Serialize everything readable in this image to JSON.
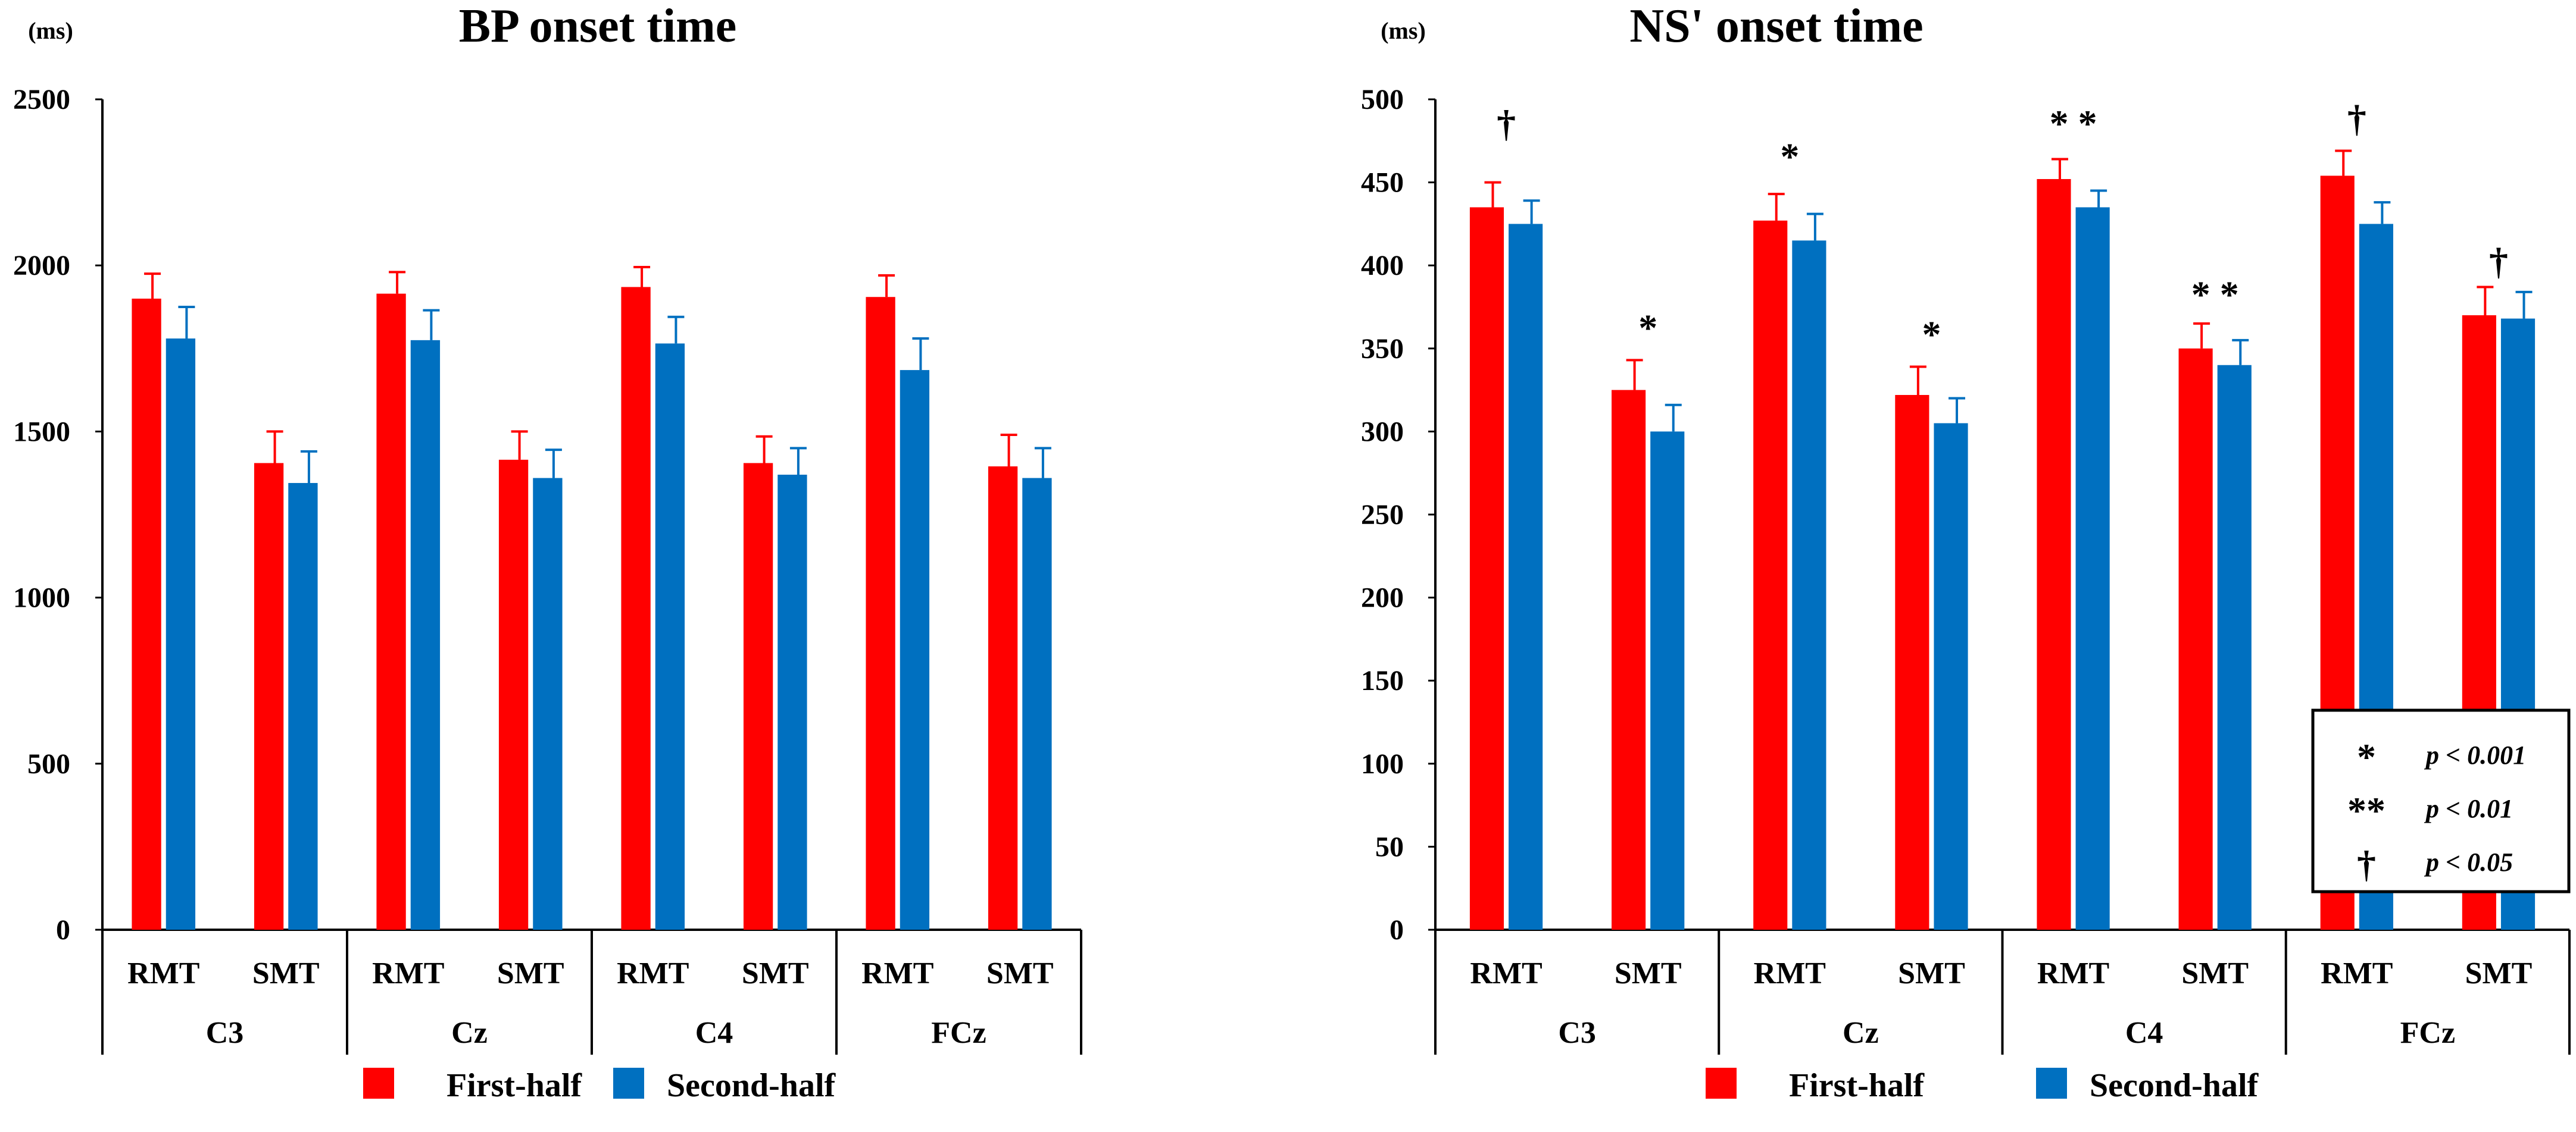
{
  "colors": {
    "first_half": "#ff0000",
    "second_half": "#0070c0"
  },
  "legend": {
    "first_half": "First-half",
    "second_half": "Second-half"
  },
  "chart_data": [
    {
      "type": "bar",
      "title": "BP onset time",
      "ylabel": "(ms)",
      "ylim": [
        0,
        2500
      ],
      "yticks": [
        "0",
        "500",
        "1000",
        "1500",
        "2000",
        "2500"
      ],
      "ytick_values": [
        0,
        500,
        1000,
        1500,
        2000,
        2500
      ],
      "groups": [
        "C3",
        "Cz",
        "C4",
        "FCz"
      ],
      "categories": [
        "RMT",
        "SMT",
        "RMT",
        "SMT",
        "RMT",
        "SMT",
        "RMT",
        "SMT"
      ],
      "series": [
        {
          "name": "First-half",
          "values": [
            1900,
            1405,
            1915,
            1415,
            1935,
            1405,
            1905,
            1395
          ],
          "errors": [
            75,
            95,
            65,
            85,
            60,
            80,
            65,
            95
          ]
        },
        {
          "name": "Second-half",
          "values": [
            1780,
            1345,
            1775,
            1360,
            1765,
            1370,
            1685,
            1360
          ],
          "errors": [
            95,
            95,
            90,
            85,
            80,
            80,
            95,
            90
          ]
        }
      ],
      "annotations": []
    },
    {
      "type": "bar",
      "title": "NS' onset time",
      "ylabel": "(ms)",
      "ylim": [
        0,
        500
      ],
      "yticks": [
        "0",
        "50",
        "100",
        "150",
        "200",
        "250",
        "300",
        "350",
        "400",
        "450",
        "500"
      ],
      "ytick_values": [
        0,
        50,
        100,
        150,
        200,
        250,
        300,
        350,
        400,
        450,
        500
      ],
      "groups": [
        "C3",
        "Cz",
        "C4",
        "FCz"
      ],
      "categories": [
        "RMT",
        "SMT",
        "RMT",
        "SMT",
        "RMT",
        "SMT",
        "RMT",
        "SMT"
      ],
      "series": [
        {
          "name": "First-half",
          "values": [
            435,
            325,
            427,
            322,
            452,
            350,
            454,
            370
          ],
          "errors": [
            15,
            18,
            16,
            17,
            12,
            15,
            15,
            17
          ]
        },
        {
          "name": "Second-half",
          "values": [
            425,
            300,
            415,
            305,
            435,
            340,
            425,
            368
          ],
          "errors": [
            14,
            16,
            16,
            15,
            10,
            15,
            13,
            16
          ]
        }
      ],
      "annotations": [
        {
          "index": 0,
          "symbol": "†",
          "value": 485
        },
        {
          "index": 1,
          "symbol": "*",
          "value": 362
        },
        {
          "index": 2,
          "symbol": "*",
          "value": 465
        },
        {
          "index": 3,
          "symbol": "*",
          "value": 358
        },
        {
          "index": 4,
          "symbol": "* *",
          "value": 485
        },
        {
          "index": 5,
          "symbol": "* *",
          "value": 382
        },
        {
          "index": 6,
          "symbol": "†",
          "value": 488
        },
        {
          "index": 7,
          "symbol": "†",
          "value": 402
        }
      ],
      "key": [
        {
          "symbol": "*",
          "text": "p < 0.001"
        },
        {
          "symbol": "**",
          "text": "p < 0.01"
        },
        {
          "symbol": "†",
          "text": "p < 0.05"
        }
      ]
    }
  ]
}
